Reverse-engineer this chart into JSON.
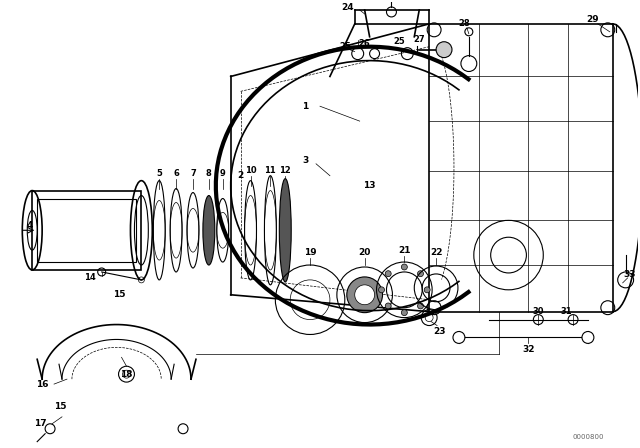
{
  "background_color": "#ffffff",
  "line_color": "#000000",
  "watermark": "0000800",
  "fig_width": 6.4,
  "fig_height": 4.48,
  "dpi": 100
}
